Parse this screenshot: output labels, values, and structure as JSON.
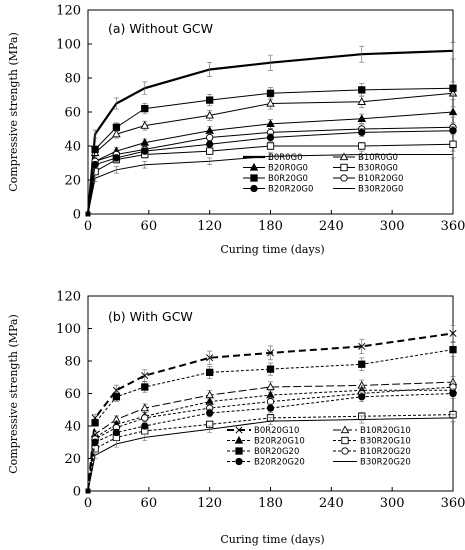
{
  "chart_data": [
    {
      "type": "line",
      "title": "(a) Without GCW",
      "xlabel": "Curing time (days)",
      "ylabel": "Compressive strength (MPa)",
      "xlim": [
        0,
        360
      ],
      "ylim": [
        0,
        120
      ],
      "xticks": [
        0,
        60,
        120,
        180,
        240,
        300,
        360
      ],
      "yticks": [
        0,
        20,
        40,
        60,
        80,
        100,
        120
      ],
      "grid": false,
      "legend_position": "bottom-right",
      "x": [
        0,
        7,
        28,
        56,
        120,
        180,
        270,
        360
      ],
      "series": [
        {
          "name": "B0R0G0",
          "style": "thick-solid",
          "marker": "none",
          "values": [
            0,
            47,
            65,
            74,
            85,
            89,
            94,
            96
          ]
        },
        {
          "name": "B10R0G0",
          "style": "solid",
          "marker": "triangle-open",
          "values": [
            0,
            36,
            47,
            52,
            58,
            65,
            66,
            71
          ]
        },
        {
          "name": "B20R0G0",
          "style": "solid",
          "marker": "triangle-filled",
          "values": [
            0,
            31,
            37,
            42,
            49,
            53,
            56,
            60
          ]
        },
        {
          "name": "B30R0G0",
          "style": "solid",
          "marker": "square-open",
          "values": [
            0,
            25,
            32,
            35,
            37,
            40,
            40,
            41
          ]
        },
        {
          "name": "B0R20G0",
          "style": "solid",
          "marker": "square-filled",
          "values": [
            0,
            38,
            51,
            62,
            67,
            71,
            73,
            74
          ]
        },
        {
          "name": "B10R20G0",
          "style": "solid",
          "marker": "circle-open",
          "values": [
            0,
            31,
            35,
            38,
            45,
            48,
            50,
            51
          ]
        },
        {
          "name": "B20R20G0",
          "style": "solid",
          "marker": "circle-filled",
          "values": [
            0,
            29,
            33,
            37,
            41,
            45,
            48,
            49
          ]
        },
        {
          "name": "B30R20G0",
          "style": "solid",
          "marker": "none",
          "values": [
            0,
            21,
            26,
            29,
            31,
            34,
            35,
            35
          ]
        }
      ]
    },
    {
      "type": "line",
      "title": "(b) With GCW",
      "xlabel": "Curing time (days)",
      "ylabel": "Compressive strength (MPa)",
      "xlim": [
        0,
        360
      ],
      "ylim": [
        0,
        120
      ],
      "xticks": [
        0,
        60,
        120,
        180,
        240,
        300,
        360
      ],
      "yticks": [
        0,
        20,
        40,
        60,
        80,
        100,
        120
      ],
      "grid": false,
      "legend_position": "bottom-right",
      "x": [
        0,
        7,
        28,
        56,
        120,
        180,
        270,
        360
      ],
      "series": [
        {
          "name": "B0R20G10",
          "style": "thick-dashed",
          "marker": "x",
          "values": [
            0,
            45,
            62,
            71,
            82,
            85,
            89,
            97
          ]
        },
        {
          "name": "B10R20G10",
          "style": "long-dash",
          "marker": "triangle-open",
          "values": [
            0,
            35,
            44,
            51,
            59,
            64,
            65,
            67
          ]
        },
        {
          "name": "B20R20G10",
          "style": "dashed",
          "marker": "triangle-filled",
          "values": [
            0,
            33,
            41,
            46,
            55,
            59,
            62,
            62
          ]
        },
        {
          "name": "B30R20G10",
          "style": "dashed",
          "marker": "square-open",
          "values": [
            0,
            26,
            33,
            37,
            41,
            45,
            46,
            47
          ]
        },
        {
          "name": "B0R20G20",
          "style": "dashed",
          "marker": "square-filled",
          "values": [
            0,
            42,
            58,
            64,
            73,
            75,
            78,
            87
          ]
        },
        {
          "name": "B10R20G20",
          "style": "dashed",
          "marker": "circle-open",
          "values": [
            0,
            32,
            39,
            45,
            51,
            55,
            60,
            64
          ]
        },
        {
          "name": "B20R20G20",
          "style": "dashed",
          "marker": "circle-filled",
          "values": [
            0,
            30,
            36,
            40,
            48,
            51,
            58,
            60
          ]
        },
        {
          "name": "B30R20G20",
          "style": "solid",
          "marker": "none",
          "values": [
            0,
            22,
            29,
            33,
            38,
            43,
            44,
            45
          ]
        }
      ]
    }
  ]
}
